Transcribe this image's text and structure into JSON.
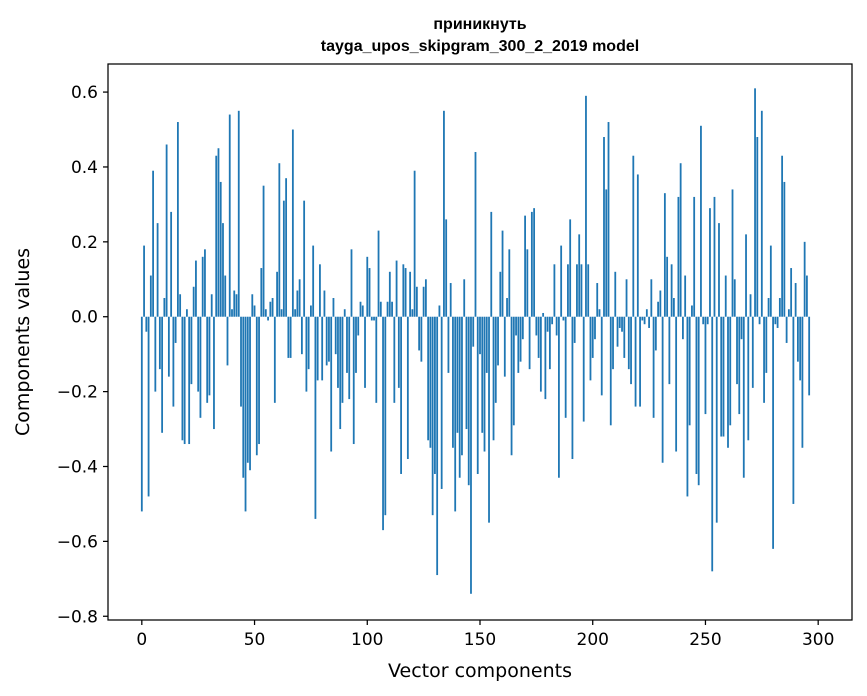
{
  "chart_data": {
    "type": "bar",
    "title_line1": "приникнуть",
    "title_line2": "tayga_upos_skipgram_300_2_2019 model",
    "xlabel": "Vector components",
    "ylabel": "Components values",
    "xlim": [
      -15,
      315
    ],
    "ylim": [
      -0.81,
      0.675
    ],
    "xticks": [
      0,
      50,
      100,
      150,
      200,
      250,
      300
    ],
    "xtick_labels": [
      "0",
      "50",
      "100",
      "150",
      "200",
      "250",
      "300"
    ],
    "yticks": [
      -0.8,
      -0.6,
      -0.4,
      -0.2,
      0.0,
      0.2,
      0.4,
      0.6
    ],
    "ytick_labels": [
      "−0.8",
      "−0.6",
      "−0.4",
      "−0.2",
      "0.0",
      "0.2",
      "0.4",
      "0.6"
    ],
    "color": "#1f77b4",
    "values": [
      -0.52,
      0.19,
      -0.04,
      -0.48,
      0.11,
      0.39,
      -0.2,
      0.25,
      -0.14,
      -0.31,
      0.05,
      0.46,
      -0.16,
      0.28,
      -0.24,
      -0.07,
      0.52,
      0.06,
      -0.33,
      -0.34,
      0.02,
      -0.34,
      -0.18,
      0.08,
      0.15,
      -0.2,
      -0.27,
      0.16,
      0.18,
      -0.23,
      -0.21,
      0.06,
      -0.3,
      0.43,
      0.45,
      0.36,
      0.25,
      0.11,
      -0.13,
      0.54,
      0.02,
      0.07,
      0.06,
      0.55,
      -0.24,
      -0.43,
      -0.52,
      -0.39,
      -0.41,
      0.06,
      0.03,
      -0.37,
      -0.34,
      0.13,
      0.35,
      0.02,
      -0.01,
      0.04,
      0.05,
      -0.23,
      0.12,
      0.41,
      0.02,
      0.31,
      0.37,
      -0.11,
      -0.11,
      0.5,
      0.02,
      0.07,
      0.1,
      -0.1,
      0.31,
      -0.2,
      -0.14,
      0.03,
      0.19,
      -0.54,
      -0.17,
      0.14,
      -0.17,
      0.07,
      -0.13,
      -0.12,
      -0.36,
      0.05,
      -0.1,
      -0.19,
      -0.3,
      -0.23,
      0.02,
      -0.15,
      -0.22,
      0.18,
      -0.34,
      -0.15,
      -0.05,
      0.04,
      0.03,
      -0.19,
      0.16,
      0.13,
      -0.01,
      -0.01,
      -0.23,
      0.23,
      0.04,
      -0.57,
      -0.53,
      0.04,
      0.12,
      0.04,
      -0.23,
      0.15,
      -0.19,
      -0.42,
      0.14,
      0.13,
      -0.38,
      0.12,
      0.02,
      0.39,
      0.08,
      -0.09,
      -0.12,
      0.08,
      0.1,
      -0.33,
      -0.35,
      -0.53,
      -0.42,
      -0.69,
      0.03,
      -0.46,
      0.55,
      0.26,
      -0.15,
      0.09,
      -0.35,
      -0.52,
      -0.31,
      -0.43,
      -0.37,
      0.1,
      -0.3,
      -0.45,
      -0.74,
      -0.08,
      0.44,
      -0.42,
      -0.1,
      -0.31,
      -0.36,
      -0.15,
      -0.55,
      0.28,
      -0.33,
      -0.23,
      -0.13,
      0.12,
      0.23,
      -0.16,
      0.05,
      0.18,
      -0.37,
      -0.29,
      -0.05,
      -0.15,
      -0.12,
      -0.06,
      0.27,
      0.18,
      -0.14,
      0.28,
      0.29,
      -0.05,
      -0.11,
      -0.2,
      0.01,
      -0.22,
      -0.04,
      -0.14,
      -0.02,
      0.14,
      -0.05,
      -0.43,
      0.19,
      -0.01,
      -0.27,
      0.14,
      0.26,
      -0.38,
      -0.07,
      0.14,
      0.22,
      0.14,
      -0.28,
      0.59,
      0.14,
      -0.17,
      -0.11,
      -0.06,
      0.09,
      0.02,
      -0.21,
      0.48,
      0.34,
      0.52,
      -0.29,
      -0.14,
      0.12,
      -0.08,
      -0.03,
      -0.04,
      -0.11,
      0.1,
      -0.14,
      -0.18,
      0.43,
      -0.24,
      0.38,
      -0.24,
      -0.01,
      -0.02,
      0.02,
      -0.03,
      0.1,
      -0.27,
      -0.09,
      0.04,
      0.07,
      -0.39,
      0.33,
      0.16,
      -0.18,
      0.14,
      0.05,
      -0.36,
      0.32,
      0.41,
      -0.06,
      0.11,
      -0.48,
      -0.29,
      0.03,
      0.32,
      -0.42,
      -0.45,
      0.51,
      -0.02,
      -0.26,
      -0.02,
      0.29,
      -0.68,
      0.32,
      -0.55,
      0.25,
      -0.32,
      -0.32,
      0.11,
      -0.35,
      -0.29,
      0.34,
      0.1,
      -0.18,
      -0.26,
      -0.06,
      -0.43,
      0.22,
      -0.33,
      0.06,
      -0.19,
      0.61,
      0.48,
      -0.02,
      0.55,
      -0.23,
      -0.15,
      0.05,
      0.19,
      -0.62,
      -0.02,
      -0.03,
      0.05,
      0.43,
      0.36,
      -0.07,
      0.02,
      0.13,
      -0.5,
      0.09,
      -0.12,
      -0.17,
      -0.35,
      0.2,
      0.11,
      -0.21
    ]
  }
}
